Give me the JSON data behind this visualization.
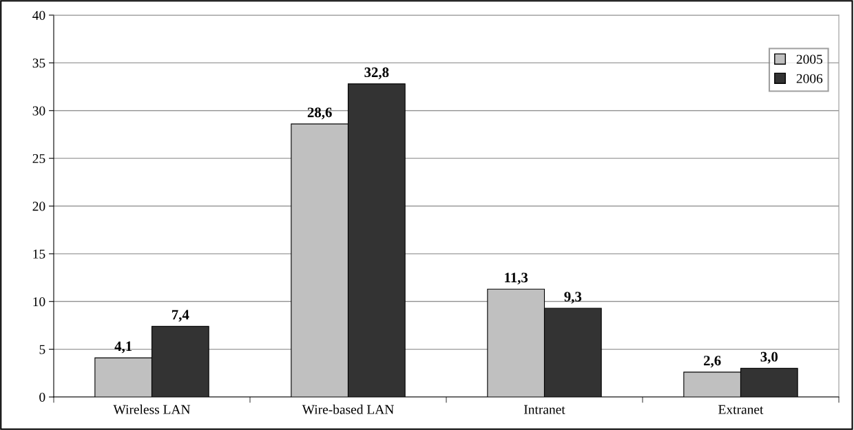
{
  "chart_data": {
    "type": "bar",
    "categories": [
      "Wireless LAN",
      "Wire-based LAN",
      "Intranet",
      "Extranet"
    ],
    "series": [
      {
        "name": "2005",
        "color": "#c0c0c0",
        "values": [
          4.1,
          28.6,
          11.3,
          2.6
        ],
        "value_labels": [
          "4,1",
          "28,6",
          "11,3",
          "2,6"
        ]
      },
      {
        "name": "2006",
        "color": "#333333",
        "values": [
          7.4,
          32.8,
          9.3,
          3.0
        ],
        "value_labels": [
          "7,4",
          "32,8",
          "9,3",
          "3,0"
        ]
      }
    ],
    "ylim": [
      0,
      40
    ],
    "yticks": [
      0,
      5,
      10,
      15,
      20,
      25,
      30,
      35,
      40
    ],
    "grid": "y",
    "legend": "top right"
  }
}
